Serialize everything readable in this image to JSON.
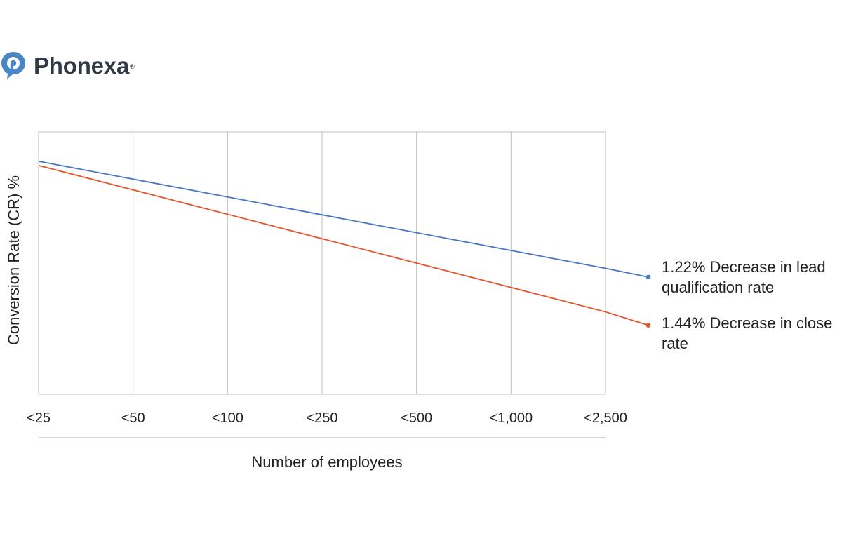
{
  "brand": {
    "name": "Phonexa",
    "registered": "®",
    "icon": "phonexa-logo-icon",
    "color": "#4a86c6"
  },
  "chart_data": {
    "type": "line",
    "title": "",
    "xlabel": "Number of employees",
    "ylabel": "Conversion Rate (CR) %",
    "categories": [
      "<25",
      "<50",
      "<100",
      "<250",
      "<500",
      "<1,000",
      "<2,500"
    ],
    "y_tick_labels": false,
    "grid": {
      "vertical": true,
      "horizontal": false
    },
    "series": [
      {
        "name": "1.22% Decrease in lead qualification rate",
        "color": "#4b78c2",
        "values": [
          88.8,
          82.0,
          75.2,
          68.4,
          61.6,
          54.8,
          48.0
        ],
        "end_value": 44.7
      },
      {
        "name": "1.44% Decrease in close rate",
        "color": "#e8512a",
        "values": [
          87.2,
          77.9,
          68.6,
          59.3,
          50.0,
          40.7,
          31.4
        ],
        "end_value": 26.3
      }
    ],
    "ylim": [
      0,
      100
    ]
  }
}
